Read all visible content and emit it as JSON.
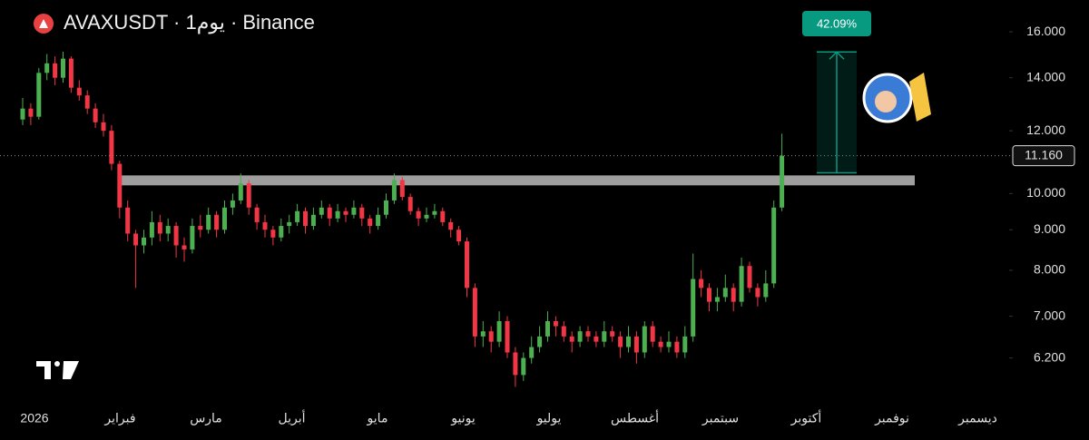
{
  "chart_data": {
    "type": "candlestick",
    "title": "AVAXUSDT · 1يوم · Binance",
    "log_scale": true,
    "ylim": [
      5.5,
      17.55
    ],
    "yticks": [
      {
        "value": 16,
        "label": "16.000"
      },
      {
        "value": 14,
        "label": "14.000"
      },
      {
        "value": 12,
        "label": "12.000"
      },
      {
        "value": 10,
        "label": "10.000"
      },
      {
        "value": 9,
        "label": "9.000"
      },
      {
        "value": 8,
        "label": "8.000"
      },
      {
        "value": 7,
        "label": "7.000"
      },
      {
        "value": 6.2,
        "label": "6.200"
      }
    ],
    "x_labels": [
      "2026",
      "فبراير",
      "مارس",
      "أبريل",
      "مايو",
      "يونيو",
      "يوليو",
      "أغسطس",
      "سبتمبر",
      "أكتوبر",
      "نوفمبر",
      "ديسمبر"
    ],
    "up_color": "#4caf50",
    "down_color": "#f23645",
    "open": [
      12.4,
      12.8,
      12.5,
      14.2,
      14.6,
      14.0,
      14.8,
      13.6,
      13.3,
      12.8,
      12.3,
      12.0,
      10.9,
      9.6,
      8.9,
      8.6,
      8.8,
      9.2,
      8.9,
      9.1,
      8.6,
      8.5,
      9.1,
      9.0,
      9.4,
      9.0,
      9.6,
      9.8,
      10.3,
      9.6,
      9.2,
      9.0,
      8.8,
      9.1,
      9.2,
      9.5,
      9.1,
      9.4,
      9.6,
      9.3,
      9.5,
      9.4,
      9.6,
      9.3,
      9.1,
      9.4,
      9.8,
      10.4,
      9.9,
      9.5,
      9.3,
      9.4,
      9.5,
      9.2,
      9.0,
      8.7,
      7.6,
      6.6,
      6.7,
      6.5,
      6.9,
      6.3,
      5.9,
      6.2,
      6.4,
      6.6,
      6.9,
      6.8,
      6.6,
      6.5,
      6.7,
      6.6,
      6.5,
      6.7,
      6.6,
      6.4,
      6.6,
      6.3,
      6.8,
      6.5,
      6.4,
      6.5,
      6.3,
      6.6,
      7.8,
      7.6,
      7.3,
      7.4,
      7.6,
      7.3,
      8.1,
      7.6,
      7.4,
      7.7,
      9.6
    ],
    "high": [
      13.2,
      13.0,
      14.4,
      15.0,
      14.9,
      15.1,
      14.9,
      13.9,
      13.5,
      13.0,
      12.6,
      12.2,
      11.0,
      9.8,
      9.0,
      9.0,
      9.5,
      9.4,
      9.3,
      9.2,
      8.8,
      9.3,
      9.4,
      9.6,
      9.5,
      9.8,
      10.0,
      10.6,
      10.4,
      9.7,
      9.4,
      9.1,
      9.3,
      9.4,
      9.7,
      9.6,
      9.6,
      9.8,
      9.7,
      9.7,
      9.6,
      9.8,
      9.7,
      9.4,
      9.6,
      10.0,
      10.6,
      10.5,
      10.0,
      9.6,
      9.6,
      9.7,
      9.6,
      9.3,
      9.1,
      8.8,
      7.7,
      6.9,
      6.8,
      7.1,
      7.0,
      6.4,
      6.3,
      6.6,
      6.8,
      7.1,
      7.0,
      6.9,
      6.7,
      6.8,
      6.8,
      6.7,
      6.9,
      6.8,
      6.7,
      6.8,
      6.7,
      6.9,
      6.9,
      6.6,
      6.7,
      6.6,
      6.8,
      8.4,
      8.0,
      7.7,
      7.6,
      7.9,
      7.7,
      8.3,
      8.2,
      7.7,
      8.0,
      9.8,
      11.9
    ],
    "low": [
      12.2,
      12.2,
      12.4,
      13.9,
      13.7,
      13.8,
      13.4,
      13.1,
      12.6,
      12.1,
      11.8,
      10.7,
      9.3,
      8.7,
      7.6,
      8.4,
      8.6,
      8.7,
      8.7,
      8.3,
      8.2,
      8.4,
      8.8,
      8.9,
      8.8,
      8.9,
      9.4,
      9.7,
      9.4,
      9.0,
      8.8,
      8.6,
      8.7,
      8.9,
      9.1,
      8.9,
      9.0,
      9.3,
      9.1,
      9.2,
      9.2,
      9.3,
      9.1,
      8.9,
      9.0,
      9.3,
      9.7,
      9.8,
      9.4,
      9.1,
      9.2,
      9.3,
      9.1,
      8.8,
      8.6,
      7.4,
      6.4,
      6.4,
      6.3,
      6.4,
      6.2,
      5.7,
      5.8,
      6.1,
      6.3,
      6.5,
      6.6,
      6.5,
      6.3,
      6.4,
      6.5,
      6.4,
      6.4,
      6.5,
      6.2,
      6.3,
      6.1,
      6.2,
      6.4,
      6.3,
      6.3,
      6.2,
      6.2,
      6.5,
      7.4,
      7.1,
      7.1,
      7.3,
      7.1,
      7.2,
      7.5,
      7.2,
      7.3,
      7.6,
      9.5
    ],
    "close": [
      12.8,
      12.5,
      14.2,
      14.6,
      14.0,
      14.8,
      13.6,
      13.3,
      12.8,
      12.3,
      12.0,
      10.9,
      9.6,
      8.9,
      8.6,
      8.8,
      9.2,
      8.9,
      9.1,
      8.6,
      8.5,
      9.1,
      9.0,
      9.4,
      9.0,
      9.6,
      9.8,
      10.3,
      9.6,
      9.2,
      9.0,
      8.8,
      9.1,
      9.2,
      9.5,
      9.1,
      9.4,
      9.6,
      9.3,
      9.5,
      9.4,
      9.6,
      9.3,
      9.1,
      9.4,
      9.8,
      10.4,
      9.9,
      9.5,
      9.3,
      9.4,
      9.5,
      9.2,
      9.0,
      8.7,
      7.6,
      6.6,
      6.7,
      6.5,
      6.9,
      6.3,
      5.9,
      6.2,
      6.4,
      6.6,
      6.9,
      6.8,
      6.6,
      6.5,
      6.7,
      6.6,
      6.5,
      6.7,
      6.6,
      6.4,
      6.6,
      6.3,
      6.8,
      6.5,
      6.4,
      6.5,
      6.3,
      6.6,
      7.8,
      7.6,
      7.3,
      7.4,
      7.6,
      7.3,
      8.1,
      7.6,
      7.4,
      7.7,
      9.6,
      11.16
    ],
    "last_price": {
      "value": 11.16,
      "label": "11.160"
    },
    "support_zone": [
      10.24,
      10.54
    ],
    "measure": {
      "from": 10.62,
      "to": 15.09,
      "label": "42.09%"
    }
  }
}
